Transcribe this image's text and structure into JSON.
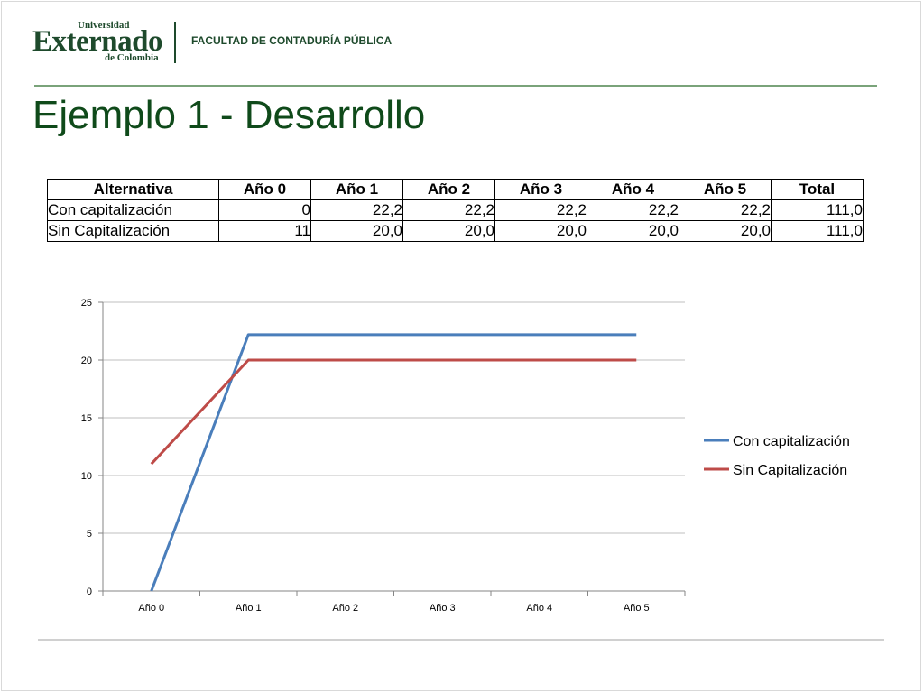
{
  "header": {
    "logo_small": "Universidad",
    "logo_main": "Externado",
    "logo_sub": "de Colombia",
    "faculty": "FACULTAD DE CONTADURÍA PÚBLICA"
  },
  "title": "Ejemplo 1 - Desarrollo",
  "table": {
    "headers": [
      "Alternativa",
      "Año 0",
      "Año 1",
      "Año 2",
      "Año 3",
      "Año 4",
      "Año 5",
      "Total"
    ],
    "rows": [
      [
        "Con capitalización",
        "0",
        "22,2",
        "22,2",
        "22,2",
        "22,2",
        "22,2",
        "111,0"
      ],
      [
        "Sin Capitalización",
        "11",
        "20,0",
        "20,0",
        "20,0",
        "20,0",
        "20,0",
        "111,0"
      ]
    ]
  },
  "colors": {
    "brand_green": "#1e4a2c",
    "title_green": "#0f4a1a",
    "series_blue": "#4a7ebb",
    "series_red": "#be4b48"
  },
  "chart_data": {
    "type": "line",
    "categories": [
      "Año 0",
      "Año 1",
      "Año 2",
      "Año 3",
      "Año 4",
      "Año 5"
    ],
    "series": [
      {
        "name": "Con capitalización",
        "values": [
          0,
          22.2,
          22.2,
          22.2,
          22.2,
          22.2
        ],
        "color": "#4a7ebb"
      },
      {
        "name": "Sin Capitalización",
        "values": [
          11,
          20,
          20,
          20,
          20,
          20
        ],
        "color": "#be4b48"
      }
    ],
    "ylim": [
      0,
      25
    ],
    "yticks": [
      0,
      5,
      10,
      15,
      20,
      25
    ],
    "grid": true,
    "legend": "right"
  }
}
